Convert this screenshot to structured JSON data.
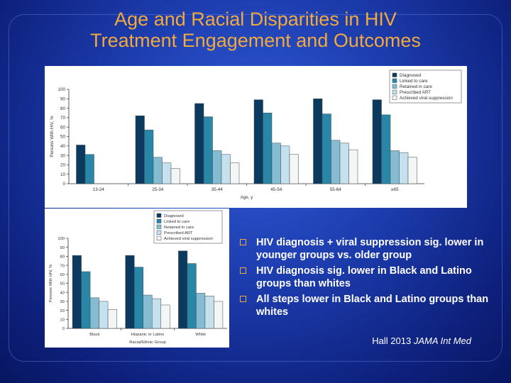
{
  "slide": {
    "title_line1": "Age and Racial Disparities in HIV",
    "title_line2": "Treatment Engagement and Outcomes",
    "bullets": [
      "HIV diagnosis + viral suppression sig. lower in younger groups vs. older group",
      "HIV diagnosis sig. lower in Black and Latino groups than whites",
      "All steps lower in Black and Latino groups than whites"
    ],
    "citation_author": "Hall 2013",
    "citation_journal": "JAMA Int Med"
  },
  "colors": {
    "series": [
      "#0c3a5e",
      "#2a86a6",
      "#86bcd2",
      "#c5e1ee",
      "#f4f6f6"
    ],
    "title": "#f2a93b"
  },
  "chart_data": [
    {
      "type": "bar",
      "categories": [
        "13-24",
        "25-34",
        "35-44",
        "45-54",
        "55-64",
        "≥65"
      ],
      "series": [
        {
          "name": "Diagnosed",
          "values": [
            41,
            72,
            85,
            89,
            90,
            89
          ]
        },
        {
          "name": "Linked to care",
          "values": [
            31,
            57,
            71,
            75,
            74,
            73
          ]
        },
        {
          "name": "Retained in care",
          "values": [
            0,
            28,
            35,
            43,
            46,
            35
          ]
        },
        {
          "name": "Prescribed ART",
          "values": [
            0,
            22,
            31,
            40,
            43,
            33
          ]
        },
        {
          "name": "Achieved viral suppression",
          "values": [
            0,
            16,
            22,
            31,
            36,
            28
          ]
        }
      ],
      "xlabel": "Age, y",
      "ylabel": "Persons With HIV, %",
      "ylim": [
        0,
        100
      ],
      "yticks": [
        0,
        10,
        20,
        30,
        40,
        50,
        60,
        70,
        80,
        90,
        100
      ],
      "legend": "top-right",
      "grid": false
    },
    {
      "type": "bar",
      "categories": [
        "Black",
        "Hispanic or Latino",
        "White"
      ],
      "series": [
        {
          "name": "Diagnosed",
          "values": [
            81,
            81,
            86
          ]
        },
        {
          "name": "Linked to care",
          "values": [
            63,
            68,
            72
          ]
        },
        {
          "name": "Retained in care",
          "values": [
            34,
            37,
            39
          ]
        },
        {
          "name": "Prescribed ART",
          "values": [
            30,
            33,
            36
          ]
        },
        {
          "name": "Achieved viral suppression",
          "values": [
            21,
            26,
            30
          ]
        }
      ],
      "xlabel": "Racial/Ethnic Group",
      "ylabel": "Persons With HIV, %",
      "ylim": [
        0,
        100
      ],
      "yticks": [
        0,
        10,
        20,
        30,
        40,
        50,
        60,
        70,
        80,
        90,
        100
      ],
      "legend": "top-right",
      "grid": false
    }
  ]
}
